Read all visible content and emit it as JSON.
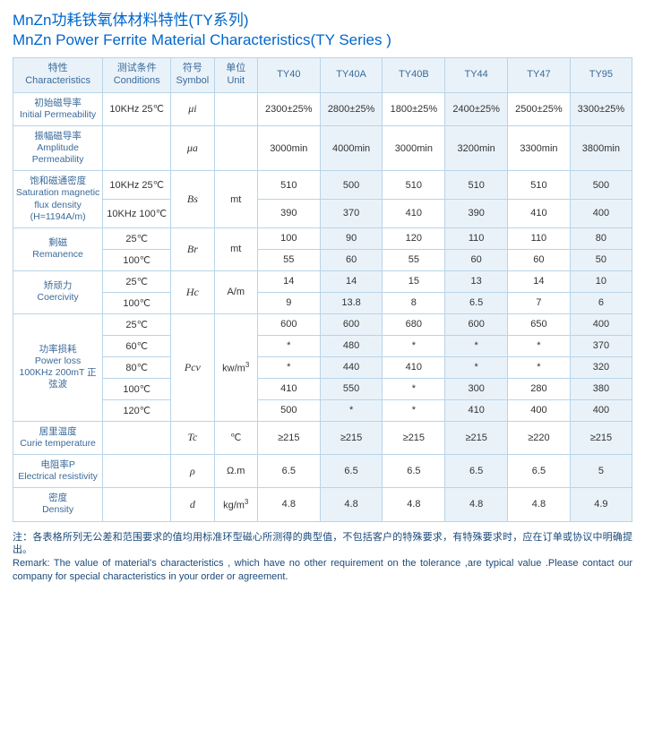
{
  "title_cn": "MnZn功耗铁氧体材料特性(TY系列)",
  "title_en": "MnZn  Power Ferrite  Material  Characteristics(TY Series )",
  "head": {
    "char_cn": "特性",
    "char_en": "Characteristics",
    "cond_cn": "测试条件",
    "cond_en": "Conditions",
    "sym_cn": "符号",
    "sym_en": "Symbol",
    "unit_cn": "单位",
    "unit_en": "Unit",
    "cols": [
      "TY40",
      "TY40A",
      "TY40B",
      "TY44",
      "TY47",
      "TY95"
    ]
  },
  "rows": [
    {
      "char_cn": "初始磁导率",
      "char_en": "Initial Permeability",
      "cond": "10KHz 25℃",
      "sym": "μi",
      "unit": "",
      "vals": [
        "2300±25%",
        "2800±25%",
        "1800±25%",
        "2400±25%",
        "2500±25%",
        "3300±25%"
      ]
    },
    {
      "char_cn": "振幅磁导率",
      "char_en": "Amplitude Permeability",
      "cond": "",
      "sym": "μa",
      "unit": "",
      "vals": [
        "3000min",
        "4000min",
        "3000min",
        "3200min",
        "3300min",
        "3800min"
      ]
    }
  ],
  "bs": {
    "char_cn": "饱和磁通密度",
    "char_en": "Saturation magnetic flux density",
    "char_ex": "(H=1194A/m)",
    "sym": "Bs",
    "unit": "mt",
    "sub": [
      {
        "cond": "10KHz 25℃",
        "vals": [
          "510",
          "500",
          "510",
          "510",
          "510",
          "500"
        ]
      },
      {
        "cond": "10KHz 100℃",
        "vals": [
          "390",
          "370",
          "410",
          "390",
          "410",
          "400"
        ]
      }
    ]
  },
  "br": {
    "char_cn": "剩磁",
    "char_en": "Remanence",
    "sym": "Br",
    "unit": "mt",
    "sub": [
      {
        "cond": "25℃",
        "vals": [
          "100",
          "90",
          "120",
          "110",
          "110",
          "80"
        ]
      },
      {
        "cond": "100℃",
        "vals": [
          "55",
          "60",
          "55",
          "60",
          "60",
          "50"
        ]
      }
    ]
  },
  "hc": {
    "char_cn": "矫顽力",
    "char_en": "Coercivity",
    "sym": "Hc",
    "unit": "A/m",
    "sub": [
      {
        "cond": "25℃",
        "vals": [
          "14",
          "14",
          "15",
          "13",
          "14",
          "10"
        ]
      },
      {
        "cond": "100℃",
        "vals": [
          "9",
          "13.8",
          "8",
          "6.5",
          "7",
          "6"
        ]
      }
    ]
  },
  "pcv": {
    "char_cn": "功率损耗",
    "char_en": "Power loss",
    "char_ex": "100KHz 200mT 正弦波",
    "sym": "Pcv",
    "unit": "kw/m",
    "unit_sup": "3",
    "sub": [
      {
        "cond": "25℃",
        "vals": [
          "600",
          "600",
          "680",
          "600",
          "650",
          "400"
        ]
      },
      {
        "cond": "60℃",
        "vals": [
          "*",
          "480",
          "*",
          "*",
          "*",
          "370"
        ]
      },
      {
        "cond": "80℃",
        "vals": [
          "*",
          "440",
          "410",
          "*",
          "*",
          "320"
        ]
      },
      {
        "cond": "100℃",
        "vals": [
          "410",
          "550",
          "*",
          "300",
          "280",
          "380"
        ]
      },
      {
        "cond": "120℃",
        "vals": [
          "500",
          "*",
          "*",
          "410",
          "400",
          "400"
        ]
      }
    ]
  },
  "tc": {
    "char_cn": "居里温度",
    "char_en": "Curie temperature",
    "sym": "Tc",
    "unit": "℃",
    "vals": [
      "≥215",
      "≥215",
      "≥215",
      "≥215",
      "≥220",
      "≥215"
    ]
  },
  "rho": {
    "char_cn": "电阻率P",
    "char_en": "Electrical resistivity",
    "sym": "ρ",
    "unit": "Ω.m",
    "vals": [
      "6.5",
      "6.5",
      "6.5",
      "6.5",
      "6.5",
      "5"
    ]
  },
  "d": {
    "char_cn": "密度",
    "char_en": "Density",
    "sym": "d",
    "unit": "kg/m",
    "unit_sup": "3",
    "vals": [
      "4.8",
      "4.8",
      "4.8",
      "4.8",
      "4.8",
      "4.9"
    ]
  },
  "remark_cn": "注：各表格所列无公差和范围要求的值均用标准环型磁心所测得的典型值，不包括客户的特殊要求，有特殊要求时，应在订单或协议中明确提出。",
  "remark_en": "Remark: The value of material's characteristics , which have no other requirement on the tolerance ,are typical value .Please contact our company for special characteristics in your order or agreement.",
  "alt_indices": [
    1,
    3,
    5
  ],
  "colors": {
    "brand": "#0066cc",
    "header_bg": "#eaf2f9",
    "border": "#b8d4e8",
    "text": "#333",
    "char_text": "#3a6a9a",
    "remark_text": "#1a4a7a"
  }
}
